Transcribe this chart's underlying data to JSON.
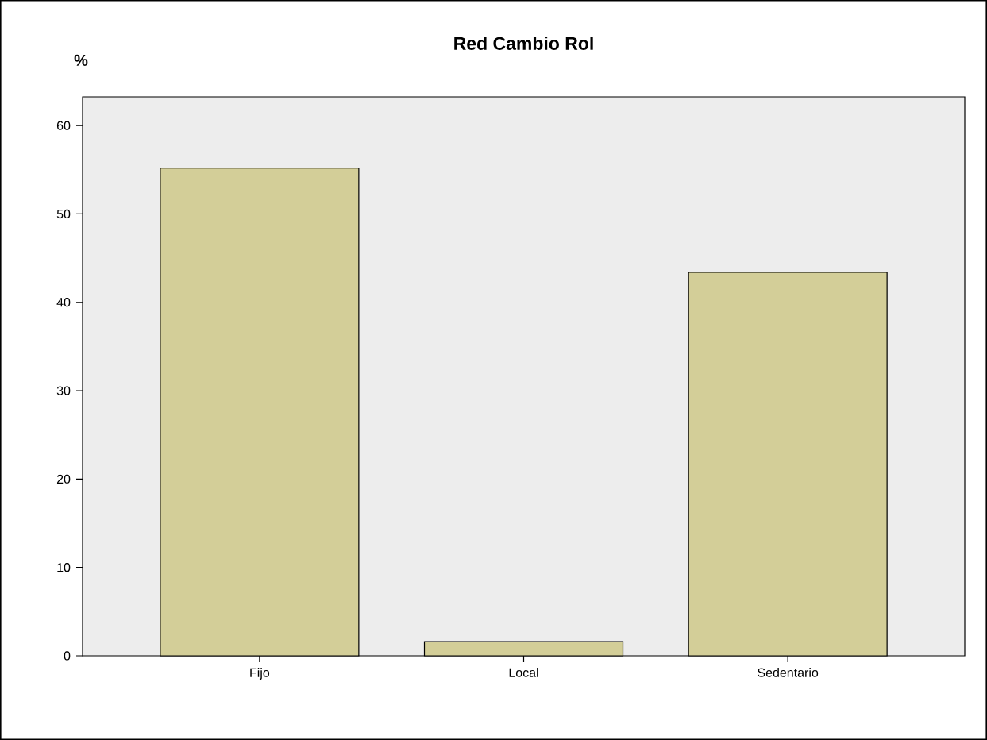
{
  "chart_data": {
    "type": "bar",
    "title": "Red Cambio Rol",
    "ylabel": "%",
    "categories": [
      "Fijo",
      "Local",
      "Sedentario"
    ],
    "values": [
      55.2,
      1.6,
      43.4
    ],
    "color": "#d3ce98",
    "ylim": [
      0,
      63.25
    ],
    "yticks": [
      0,
      10,
      20,
      30,
      40,
      50,
      60
    ],
    "grid": false
  }
}
